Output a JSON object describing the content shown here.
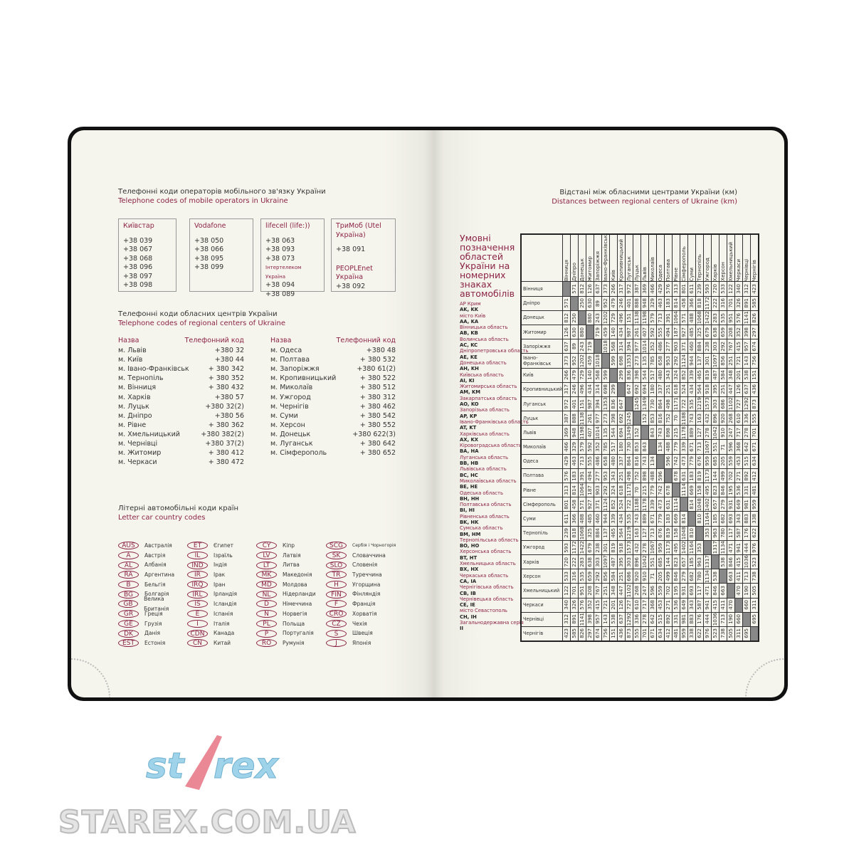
{
  "mobile": {
    "title_ua": "Телефонні коди операторів мобільного зв'язку України",
    "title_en": "Telephone codes of mobile operators in Ukraine",
    "operators": [
      {
        "name": "Київстар",
        "codes": [
          "+38 039",
          "+38 067",
          "+38 068",
          "+38 096",
          "+38 097",
          "+38 098"
        ]
      },
      {
        "name": "Vodafone",
        "codes": [
          "+38 050",
          "+38 066",
          "+38 095",
          "+38 099"
        ]
      },
      {
        "name": "lifecell (life:))",
        "codes": [
          "+38 063",
          "+38 093",
          "+38 073"
        ],
        "sub_name": "Інтертелеком Україна",
        "sub_codes": [
          "+38 094",
          "+38 089"
        ]
      },
      {
        "name": "ТриМоб (Utel Україна)",
        "codes": [
          "+38 091"
        ],
        "sub_name": "PEOPLEnet Україна",
        "sub_codes": [
          "+38 092"
        ]
      }
    ]
  },
  "regional": {
    "title_ua": "Телефонні коди обласних центрів України",
    "title_en": "Telephone codes of regional centers of Ukraine",
    "col_name": "Назва",
    "col_code": "Телефонний код",
    "left": [
      [
        "м. Львів",
        "+380 32"
      ],
      [
        "м. Київ",
        "+380 44"
      ],
      [
        "м. Івано-Франківськ",
        "+ 380 342"
      ],
      [
        "м. Тернопіль",
        "+ 380 352"
      ],
      [
        "м. Вінниця",
        "+ 380 432"
      ],
      [
        "м. Харків",
        "+380 57"
      ],
      [
        "м. Луцьк",
        "+380 32(2)"
      ],
      [
        "м. Дніпро",
        "+380 56"
      ],
      [
        "м. Рівне",
        "+ 380 362"
      ],
      [
        "м. Хмельницький",
        "+380 382(2)"
      ],
      [
        "м. Чернівці",
        "+380 37(2)"
      ],
      [
        "м. Житомир",
        "+ 380 412"
      ],
      [
        "м. Черкаси",
        "+ 380 472"
      ]
    ],
    "right": [
      [
        "м. Одеса",
        "+380 48"
      ],
      [
        "м. Полтава",
        "+ 380 532"
      ],
      [
        "м. Запоріжжя",
        "+380 61(2)"
      ],
      [
        "м. Кропивницький",
        "+ 380 522"
      ],
      [
        "м. Миколаїв",
        "+ 380 512"
      ],
      [
        "м. Ужгород",
        "+ 380 312"
      ],
      [
        "м. Чернігів",
        "+ 380 462"
      ],
      [
        "м. Суми",
        "+ 380 542"
      ],
      [
        "м. Херсон",
        "+ 380 552"
      ],
      [
        "м. Донецьк",
        "+380 622(3)"
      ],
      [
        "м. Луганськ",
        "+ 380 642"
      ],
      [
        "м. Сімферополь",
        "+ 380 652"
      ]
    ]
  },
  "country": {
    "title_ua": "Літерні автомобільні коди країн",
    "title_en": "Letter car country codes",
    "columns": [
      [
        [
          "AUS",
          "Австралія"
        ],
        [
          "A",
          "Австрія"
        ],
        [
          "AL",
          "Албанія"
        ],
        [
          "RA",
          "Аргентина"
        ],
        [
          "B",
          "Бельгія"
        ],
        [
          "BG",
          "Болгарія"
        ],
        [
          "GB",
          "Велика Британія"
        ],
        [
          "GR",
          "Греція"
        ],
        [
          "GE",
          "Грузія"
        ],
        [
          "DK",
          "Данія"
        ],
        [
          "EST",
          "Естонія"
        ]
      ],
      [
        [
          "ET",
          "Єгипет"
        ],
        [
          "IL",
          "Ізраїль"
        ],
        [
          "IND",
          "Індія"
        ],
        [
          "IR",
          "Ірак"
        ],
        [
          "IRQ",
          "Іран"
        ],
        [
          "IRL",
          "Ірландія"
        ],
        [
          "IS",
          "Ісландія"
        ],
        [
          "E",
          "Іспанія"
        ],
        [
          "I",
          "Італія"
        ],
        [
          "CDN",
          "Канада"
        ],
        [
          "CN",
          "Китай"
        ]
      ],
      [
        [
          "CY",
          "Кіпр"
        ],
        [
          "LV",
          "Латвія"
        ],
        [
          "LT",
          "Литва"
        ],
        [
          "MK",
          "Македонія"
        ],
        [
          "MD",
          "Молдова"
        ],
        [
          "NL",
          "Нідерланди"
        ],
        [
          "D",
          "Німеччина"
        ],
        [
          "N",
          "Норвегія"
        ],
        [
          "PL",
          "Польща"
        ],
        [
          "P",
          "Португалія"
        ],
        [
          "RO",
          "Румунія"
        ]
      ],
      [
        [
          "SCG",
          "Сербія і Чорногорія"
        ],
        [
          "SK",
          "Словаччина"
        ],
        [
          "SLO",
          "Словенія"
        ],
        [
          "TR",
          "Туреччина"
        ],
        [
          "H",
          "Угорщина"
        ],
        [
          "FIN",
          "Фінляндія"
        ],
        [
          "F",
          "Франція"
        ],
        [
          "CRO",
          "Хорватія"
        ],
        [
          "CZ",
          "Чехія"
        ],
        [
          "S",
          "Швеція"
        ],
        [
          "J",
          "Японія"
        ]
      ]
    ]
  },
  "plates": {
    "title": "Умовні позначення областей України на номерних знаках автомобілів",
    "items": [
      [
        "АР Крим",
        "AK, KK"
      ],
      [
        "місто Київ",
        "AA, KA"
      ],
      [
        "Вінницька область",
        "AB, KB"
      ],
      [
        "Волинська область",
        "AC, KC"
      ],
      [
        "Дніпропетровська область",
        "AE, KE"
      ],
      [
        "Донецька область",
        "AH, KH"
      ],
      [
        "Київська область",
        "AI, KI"
      ],
      [
        "Житомирська область",
        "AM, KM"
      ],
      [
        "Закарпатська область",
        "AO, KO"
      ],
      [
        "Запорізька область",
        "AP, KP"
      ],
      [
        "Івано-Франківська область",
        "AT, KT"
      ],
      [
        "Харківська область",
        "AX, KX"
      ],
      [
        "Кіровоградська область",
        "BA, HA"
      ],
      [
        "Луганська область",
        "BB, HB"
      ],
      [
        "Львівська область",
        "BC, HC"
      ],
      [
        "Миколаївська область",
        "BE, HE"
      ],
      [
        "Одеська область",
        "BH, HH"
      ],
      [
        "Полтавська область",
        "BI, HI"
      ],
      [
        "Рівненська область",
        "BK, HK"
      ],
      [
        "Сумська область",
        "BM, HM"
      ],
      [
        "Тернопільська область",
        "BO, HO"
      ],
      [
        "Херсонська область",
        "BT, HT"
      ],
      [
        "Хмельницька область",
        "BX, HX"
      ],
      [
        "Черкаська область",
        "CA, IA"
      ],
      [
        "Чернігівська область",
        "CB, IB"
      ],
      [
        "Чернівецька область",
        "CE, IE"
      ],
      [
        "місто Севастополь",
        "CH, IH"
      ],
      [
        "Загальнодержавна серія",
        "II"
      ]
    ]
  },
  "distances": {
    "title_ua": "Відстані між обласними центрами України (км)",
    "title_en": "Distances between regional centers of Ukraine (km)",
    "cities": [
      "Вінниця",
      "Дніпро",
      "Донецьк",
      "Житомир",
      "Запоріжжя",
      "Івано-Франківськ",
      "Київ",
      "Кропивницький",
      "Луганськ",
      "Луцьк",
      "Львів",
      "Миколаїв",
      "Одеса",
      "Полтава",
      "Рівне",
      "Сімферополь",
      "Суми",
      "Тернопіль",
      "Ужгород",
      "Харків",
      "Херсон",
      "Хмельницький",
      "Черкаси",
      "Чернівці",
      "Чернігів"
    ],
    "matrix": [
      [
        null,
        571,
        812,
        126,
        637,
        373,
        266,
        317,
        972,
        387,
        369,
        466,
        429,
        576,
        313,
        801,
        611,
        239,
        593,
        720,
        533,
        122,
        340,
        312,
        423
      ],
      [
        571,
        null,
        250,
        630,
        89,
        952,
        479,
        246,
        401,
        888,
        948,
        329,
        463,
        183,
        814,
        458,
        366,
        818,
        1172,
        222,
        316,
        701,
        326,
        891,
        585
      ],
      [
        812,
        250,
        null,
        880,
        243,
        1202,
        729,
        496,
        151,
        1138,
        1198,
        579,
        713,
        391,
        1064,
        571,
        488,
        1068,
        1422,
        283,
        535,
        951,
        576,
        1141,
        826
      ],
      [
        126,
        630,
        880,
        null,
        719,
        459,
        140,
        434,
        987,
        261,
        407,
        592,
        555,
        494,
        187,
        927,
        485,
        325,
        679,
        638,
        659,
        208,
        352,
        398,
        297
      ],
      [
        637,
        89,
        243,
        719,
        null,
        1018,
        568,
        314,
        394,
        977,
        1014,
        352,
        486,
        277,
        903,
        371,
        460,
        884,
        238,
        303,
        292,
        767,
        415,
        957,
        674
      ],
      [
        373,
        952,
        1202,
        459,
        1018,
        null,
        599,
        698,
        1353,
        273,
        135,
        785,
        658,
        953,
        292,
        1124,
        944,
        137,
        301,
        1097,
        856,
        251,
        721,
        143,
        756
      ],
      [
        266,
        479,
        729,
        140,
        568,
        599,
        null,
        299,
        836,
        398,
        544,
        517,
        480,
        343,
        324,
        852,
        339,
        465,
        819,
        487,
        584,
        348,
        201,
        538,
        151
      ],
      [
        317,
        246,
        496,
        434,
        314,
        698,
        299,
        null,
        647,
        692,
        694,
        180,
        337,
        251,
        618,
        524,
        434,
        564,
        918,
        395,
        251,
        447,
        126,
        637,
        436
      ],
      [
        972,
        401,
        151,
        987,
        394,
        1353,
        836,
        647,
        null,
        1245,
        1349,
        730,
        864,
        498,
        1171,
        722,
        535,
        1219,
        1573,
        303,
        686,
        1102,
        727,
        1292,
        873
      ],
      [
        387,
        888,
        1138,
        261,
        977,
        273,
        398,
        692,
        1245,
        null,
        152,
        853,
        816,
        752,
        70,
        1188,
        743,
        163,
        432,
        896,
        920,
        268,
        610,
        336,
        555
      ],
      [
        369,
        948,
        1198,
        407,
        1014,
        135,
        544,
        694,
        1349,
        152,
        null,
        843,
        743,
        898,
        215,
        1178,
        889,
        127,
        278,
        1042,
        910,
        247,
        717,
        278,
        701
      ],
      [
        466,
        329,
        579,
        592,
        352,
        785,
        517,
        180,
        730,
        853,
        843,
        null,
        134,
        488,
        779,
        339,
        671,
        713,
        1067,
        551,
        71,
        596,
        368,
        642,
        671
      ],
      [
        429,
        463,
        713,
        555,
        486,
        658,
        480,
        337,
        864,
        816,
        743,
        134,
        null,
        596,
        742,
        473,
        779,
        676,
        959,
        685,
        205,
        559,
        453,
        515,
        634
      ],
      [
        576,
        183,
        391,
        494,
        277,
        953,
        343,
        251,
        498,
        752,
        898,
        488,
        596,
        null,
        678,
        631,
        183,
        819,
        1173,
        144,
        499,
        702,
        271,
        892,
        412
      ],
      [
        313,
        814,
        1064,
        187,
        903,
        292,
        324,
        618,
        1171,
        70,
        215,
        779,
        742,
        678,
        null,
        1114,
        669,
        158,
        495,
        823,
        846,
        195,
        536,
        331,
        481
      ],
      [
        801,
        458,
        571,
        927,
        371,
        1124,
        852,
        524,
        722,
        1188,
        1178,
        339,
        473,
        631,
        1114,
        null,
        814,
        1048,
        1402,
        657,
        279,
        931,
        649,
        981,
        959
      ],
      [
        611,
        366,
        488,
        485,
        460,
        944,
        339,
        434,
        535,
        743,
        889,
        671,
        779,
        183,
        669,
        814,
        null,
        810,
        1164,
        185,
        682,
        693,
        343,
        883,
        338
      ],
      [
        239,
        818,
        1068,
        325,
        884,
        137,
        465,
        564,
        1219,
        163,
        127,
        713,
        676,
        819,
        158,
        1048,
        810,
        null,
        353,
        963,
        780,
        117,
        587,
        176,
        622
      ],
      [
        593,
        1172,
        1422,
        679,
        238,
        301,
        819,
        918,
        1573,
        432,
        278,
        1067,
        959,
        1173,
        495,
        1402,
        1164,
        353,
        null,
        1317,
        1134,
        471,
        941,
        444,
        976
      ],
      [
        720,
        222,
        283,
        638,
        303,
        1097,
        487,
        395,
        303,
        896,
        1042,
        551,
        685,
        144,
        823,
        657,
        185,
        963,
        1317,
        null,
        538,
        846,
        415,
        1036,
        523
      ],
      [
        533,
        316,
        535,
        659,
        292,
        856,
        584,
        251,
        686,
        920,
        910,
        71,
        205,
        499,
        846,
        279,
        682,
        780,
        1134,
        538,
        null,
        663,
        411,
        713,
        738
      ],
      [
        122,
        701,
        951,
        208,
        767,
        251,
        348,
        447,
        1102,
        268,
        247,
        596,
        559,
        702,
        195,
        931,
        693,
        117,
        471,
        846,
        663,
        null,
        470,
        190,
        505
      ],
      [
        340,
        326,
        576,
        352,
        415,
        721,
        201,
        126,
        727,
        610,
        717,
        368,
        453,
        271,
        536,
        649,
        343,
        587,
        941,
        415,
        411,
        470,
        null,
        660,
        311
      ],
      [
        312,
        891,
        1141,
        398,
        957,
        143,
        538,
        637,
        1292,
        336,
        278,
        642,
        515,
        892,
        331,
        981,
        883,
        176,
        444,
        1036,
        713,
        190,
        660,
        null,
        695
      ],
      [
        423,
        585,
        826,
        297,
        674,
        756,
        151,
        436,
        873,
        555,
        701,
        671,
        634,
        412,
        481,
        959,
        338,
        622,
        976,
        523,
        738,
        505,
        311,
        695,
        null
      ]
    ]
  },
  "watermark": {
    "logo": "starex",
    "site": "STAREX.COM.UA"
  },
  "colors": {
    "accent": "#8b2346",
    "cover": "#111111",
    "paper": "#f6f5ed"
  }
}
